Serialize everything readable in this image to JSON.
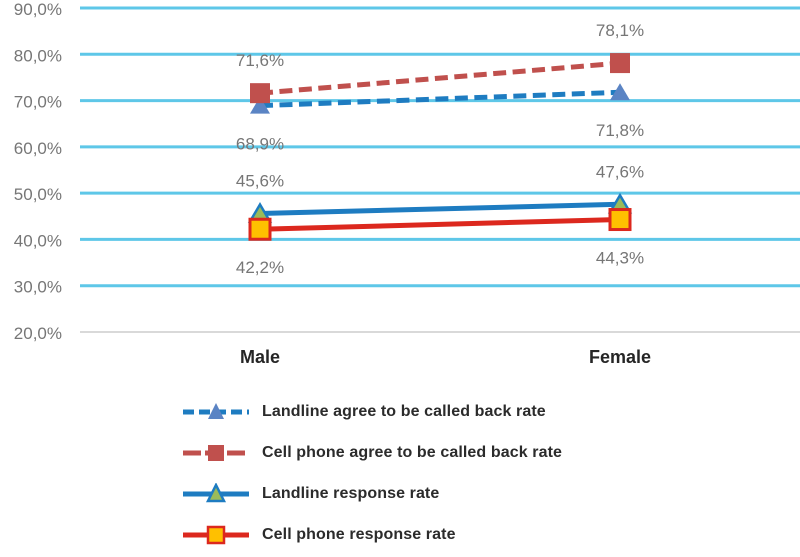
{
  "chart_data": {
    "type": "line",
    "title": "",
    "categories": [
      "Male",
      "Female"
    ],
    "series": [
      {
        "name": "Landline agree to be called back rate",
        "values": [
          68.9,
          71.8
        ],
        "data_labels": [
          "68,9%",
          "71,8%"
        ],
        "label_position": "below",
        "line_style": "dashed",
        "color": "#1E7CC1",
        "marker": "triangle",
        "marker_fill": "#5B84C4",
        "marker_stroke": "#5B84C4",
        "marker_stroke_width": 0
      },
      {
        "name": "Cell phone agree to be called back rate",
        "values": [
          71.6,
          78.1
        ],
        "data_labels": [
          "71,6%",
          "78,1%"
        ],
        "label_position": "above",
        "line_style": "dashed",
        "color": "#C0504D",
        "marker": "square",
        "marker_fill": "#C0504D",
        "marker_stroke": "#C0504D",
        "marker_stroke_width": 0
      },
      {
        "name": "Landline response rate",
        "values": [
          45.6,
          47.6
        ],
        "data_labels": [
          "45,6%",
          "47,6%"
        ],
        "label_position": "above",
        "line_style": "solid",
        "color": "#1E7CC1",
        "marker": "triangle",
        "marker_fill": "#9BBB59",
        "marker_stroke": "#1E7CC1",
        "marker_stroke_width": 2.5
      },
      {
        "name": "Cell phone response rate",
        "values": [
          42.2,
          44.3
        ],
        "data_labels": [
          "42,2%",
          "44,3%"
        ],
        "label_position": "below",
        "line_style": "solid",
        "color": "#DC281E",
        "marker": "square",
        "marker_fill": "#FFC000",
        "marker_stroke": "#DC281E",
        "marker_stroke_width": 3
      }
    ],
    "y_axis": {
      "min": 20,
      "max": 90,
      "step": 10,
      "tick_values": [
        90,
        80,
        70,
        60,
        50,
        40,
        30,
        20
      ],
      "tick_labels": [
        "90,0%",
        "80,0%",
        "70,0%",
        "60,0%",
        "50,0%",
        "40,0%",
        "30,0%",
        "20,0%"
      ]
    },
    "x_axis": {
      "labels": [
        "Male",
        "Female"
      ]
    },
    "grid": true,
    "legend_position": "bottom"
  },
  "colors": {
    "gridline": "#5EC7E8",
    "axis_line": "#D9D9D9",
    "data_label": "#767676",
    "tick_label": "#767676",
    "category_label": "#262626",
    "legend_text": "#2B2B2B",
    "background": "#FFFFFF"
  }
}
